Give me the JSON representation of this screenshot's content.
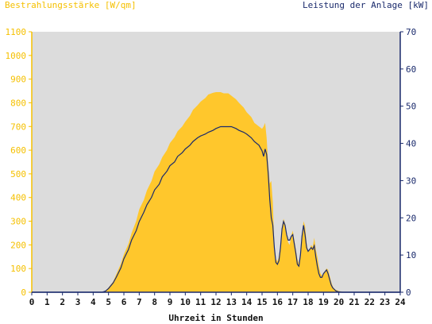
{
  "chart_data": {
    "type": "area",
    "left_axis_title": "Bestrahlungsstärke [W/qm]",
    "right_axis_title": "Leistung der Anlage [kW]",
    "xlabel": "Uhrzeit in Stunden",
    "x_ticks": [
      "0",
      "1",
      "2",
      "3",
      "4",
      "5",
      "6",
      "7",
      "8",
      "9",
      "10",
      "11",
      "12",
      "13",
      "14",
      "15",
      "16",
      "17",
      "18",
      "19",
      "20",
      "21",
      "22",
      "23",
      "24"
    ],
    "xlim": [
      0,
      24
    ],
    "ylim_left": [
      0,
      1100
    ],
    "ylim_right": [
      0,
      70
    ],
    "y_ticks_left": [
      "0",
      "100",
      "200",
      "300",
      "400",
      "500",
      "600",
      "700",
      "800",
      "900",
      "1000",
      "1100"
    ],
    "y_ticks_right": [
      "0",
      "10",
      "20",
      "30",
      "40",
      "50",
      "60",
      "70"
    ],
    "grid": false,
    "colors": {
      "irradiance": "#ffc72c",
      "power": "#1a2a6c",
      "plot_bg": "#dcdcdc",
      "left_axis": "#f5c000",
      "right_axis": "#1a2a6c"
    },
    "series": [
      {
        "name": "Bestrahlungsstärke",
        "axis": "left",
        "x": [
          0,
          4.5,
          4.8,
          5,
          5.3,
          5.5,
          5.8,
          6,
          6.3,
          6.5,
          6.8,
          7,
          7.3,
          7.5,
          7.8,
          8,
          8.3,
          8.5,
          8.8,
          9,
          9.3,
          9.5,
          9.8,
          10,
          10.3,
          10.5,
          10.8,
          11,
          11.3,
          11.5,
          11.8,
          12,
          12.3,
          12.5,
          12.8,
          13,
          13.3,
          13.5,
          13.8,
          14,
          14.3,
          14.5,
          14.8,
          15,
          15.1,
          15.2,
          15.3,
          15.4,
          15.5,
          15.6,
          15.7,
          15.8,
          15.9,
          16,
          16.1,
          16.2,
          16.3,
          16.4,
          16.5,
          16.6,
          16.7,
          16.8,
          16.9,
          17,
          17.1,
          17.2,
          17.3,
          17.4,
          17.5,
          17.6,
          17.7,
          17.8,
          17.9,
          18,
          18.1,
          18.2,
          18.3,
          18.4,
          18.5,
          18.6,
          18.7,
          18.8,
          18.9,
          19,
          19.1,
          19.2,
          19.3,
          19.4,
          19.5,
          19.6,
          19.7,
          19.8,
          19.9,
          20,
          20.2,
          20.5,
          20.7,
          21,
          24
        ],
        "y": [
          0,
          0,
          5,
          20,
          45,
          75,
          120,
          160,
          205,
          250,
          300,
          350,
          390,
          430,
          470,
          510,
          540,
          570,
          600,
          630,
          655,
          680,
          700,
          720,
          745,
          770,
          790,
          805,
          820,
          835,
          842,
          845,
          845,
          840,
          840,
          830,
          815,
          800,
          780,
          760,
          740,
          715,
          700,
          690,
          700,
          715,
          650,
          540,
          460,
          470,
          380,
          200,
          140,
          130,
          150,
          200,
          280,
          310,
          290,
          250,
          210,
          200,
          240,
          260,
          220,
          180,
          140,
          120,
          160,
          230,
          300,
          280,
          210,
          170,
          180,
          200,
          190,
          230,
          180,
          150,
          110,
          80,
          70,
          80,
          90,
          100,
          95,
          70,
          45,
          25,
          15,
          10,
          8,
          5,
          2,
          1,
          0,
          0,
          0
        ],
        "max": 845
      },
      {
        "name": "Leistung",
        "axis": "right",
        "x": [
          0,
          4.6,
          4.8,
          5,
          5.3,
          5.5,
          5.8,
          6,
          6.3,
          6.5,
          6.8,
          7,
          7.3,
          7.5,
          7.8,
          8,
          8.3,
          8.5,
          8.8,
          9,
          9.3,
          9.5,
          9.8,
          10,
          10.3,
          10.5,
          10.8,
          11,
          11.3,
          11.5,
          11.8,
          12,
          12.3,
          12.5,
          12.8,
          13,
          13.3,
          13.5,
          13.8,
          14,
          14.3,
          14.5,
          14.8,
          15,
          15.1,
          15.2,
          15.3,
          15.4,
          15.5,
          15.6,
          15.7,
          15.8,
          15.9,
          16,
          16.1,
          16.2,
          16.3,
          16.4,
          16.5,
          16.6,
          16.7,
          16.8,
          16.9,
          17,
          17.1,
          17.2,
          17.3,
          17.4,
          17.5,
          17.6,
          17.7,
          17.8,
          17.9,
          18,
          18.1,
          18.2,
          18.3,
          18.4,
          18.5,
          18.6,
          18.7,
          18.8,
          18.9,
          19,
          19.1,
          19.2,
          19.3,
          19.4,
          19.5,
          19.6,
          19.7,
          19.8,
          19.9,
          20,
          20.2,
          20.5,
          20.7,
          21,
          24
        ],
        "y": [
          0,
          0,
          0.3,
          1,
          2.5,
          4,
          6.5,
          9,
          11.5,
          14,
          16.5,
          19,
          21.5,
          23.5,
          25.5,
          27.5,
          29,
          31,
          32.5,
          34,
          35,
          36.5,
          37.5,
          38.5,
          39.5,
          40.5,
          41.5,
          42,
          42.5,
          43,
          43.5,
          44,
          44.5,
          44.5,
          44.5,
          44.5,
          44,
          43.5,
          43,
          42.5,
          41.5,
          40.5,
          39.5,
          38,
          36.5,
          38.5,
          37,
          32,
          25,
          20,
          18,
          12,
          8,
          7.5,
          8.5,
          12,
          17,
          19,
          18,
          15.5,
          14,
          14,
          15,
          15.5,
          13,
          10.5,
          7.5,
          7,
          10,
          15,
          18,
          15.5,
          12,
          11,
          11.5,
          12,
          11.5,
          12.5,
          9.5,
          7,
          5,
          4,
          4,
          5,
          5.5,
          6,
          5,
          3.5,
          2,
          1.2,
          0.8,
          0.4,
          0.2,
          0.1,
          0,
          0,
          0,
          0,
          0
        ],
        "max": 44.5
      }
    ]
  }
}
